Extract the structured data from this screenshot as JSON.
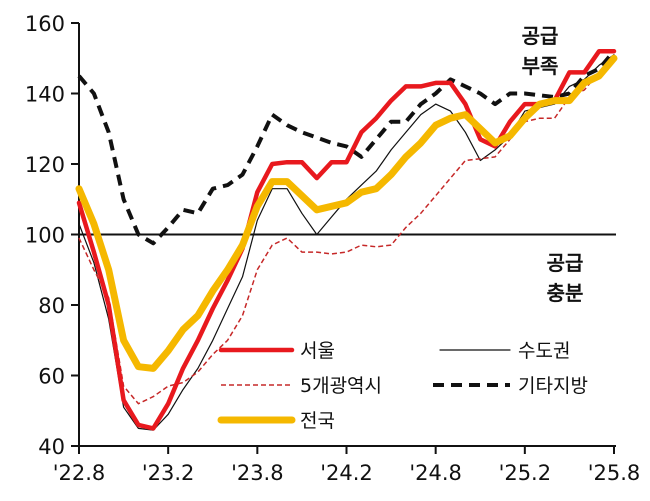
{
  "chart_data": {
    "type": "line",
    "x": [
      "'22.8",
      "'22.9",
      "'22.10",
      "'22.11",
      "'22.12",
      "'23.1",
      "'23.2",
      "'23.3",
      "'23.4",
      "'23.5",
      "'23.6",
      "'23.7",
      "'23.8",
      "'23.9",
      "'23.10",
      "'23.11",
      "'23.12",
      "'24.1",
      "'24.2",
      "'24.3",
      "'24.4",
      "'24.5",
      "'24.6",
      "'24.7",
      "'24.8",
      "'24.9",
      "'24.10",
      "'24.11",
      "'24.12",
      "'25.1",
      "'25.2",
      "'25.3",
      "'25.4",
      "'25.5",
      "'25.6",
      "'25.7",
      "'25.8"
    ],
    "xticks": [
      "'22.8",
      "'23.2",
      "'23.8",
      "'24.2",
      "'24.8",
      "'25.2",
      "'25.8"
    ],
    "yticks": [
      "40",
      "60",
      "80",
      "100",
      "120",
      "140",
      "160"
    ],
    "ylim": [
      40,
      160
    ],
    "reference_line": 100,
    "series": [
      {
        "name": "서울",
        "color": "#e8191e",
        "style": "solid",
        "width": 4.5,
        "values": [
          109,
          95,
          80,
          53,
          46,
          45,
          52,
          62,
          70,
          79,
          87,
          96,
          112,
          120,
          120.5,
          120.5,
          116,
          120.5,
          120.5,
          129,
          133,
          138,
          142,
          142,
          143,
          143,
          137,
          127,
          125,
          132,
          137,
          137,
          138,
          146,
          146,
          152,
          152
        ]
      },
      {
        "name": "수도권",
        "color": "#111111",
        "style": "solid",
        "width": 1.2,
        "values": [
          103,
          92,
          76,
          51,
          45,
          44.5,
          49,
          56,
          62,
          70,
          79,
          88,
          104,
          113,
          113,
          106,
          100,
          105,
          110,
          114,
          118,
          124,
          129,
          134,
          137,
          135,
          129,
          121,
          124,
          128,
          135,
          136,
          137,
          142,
          144,
          148,
          151
        ]
      },
      {
        "name": "5개광역시",
        "color": "#c62828",
        "style": "dashed",
        "width": 1.5,
        "values": [
          99,
          90,
          82,
          57,
          52,
          54,
          57,
          58,
          61,
          66,
          70,
          77,
          90,
          97,
          99,
          95,
          95,
          94.5,
          95,
          97,
          96.5,
          97,
          102,
          106,
          111,
          116,
          121,
          121.5,
          122,
          127,
          132,
          133,
          133,
          139,
          141,
          146,
          149
        ]
      },
      {
        "name": "기타지방",
        "color": "#111111",
        "style": "dashed",
        "width": 4,
        "values": [
          145,
          140,
          129,
          110,
          100,
          97.5,
          102,
          107,
          106,
          113,
          114,
          117,
          125,
          134,
          131,
          129,
          127.5,
          126,
          125,
          122,
          127,
          132,
          132,
          137,
          140,
          144,
          142,
          140,
          137,
          140,
          140,
          139.5,
          139,
          140,
          145,
          147,
          152
        ]
      },
      {
        "name": "전국",
        "color": "#f5b800",
        "style": "solid",
        "width": 7,
        "values": [
          113,
          103,
          90,
          70,
          62.5,
          62,
          67,
          73,
          77,
          84,
          90,
          97,
          108,
          115,
          115,
          111,
          107,
          108,
          109,
          112,
          113,
          117,
          122,
          126,
          131,
          133,
          134,
          130,
          126,
          128,
          133,
          137,
          138,
          138,
          143,
          145,
          150
        ]
      }
    ],
    "annotations": [
      {
        "lines": [
          "공급",
          "부족"
        ]
      },
      {
        "lines": [
          "공급",
          "충분"
        ]
      }
    ],
    "legend_placement": "bottom-right",
    "grid": false
  }
}
